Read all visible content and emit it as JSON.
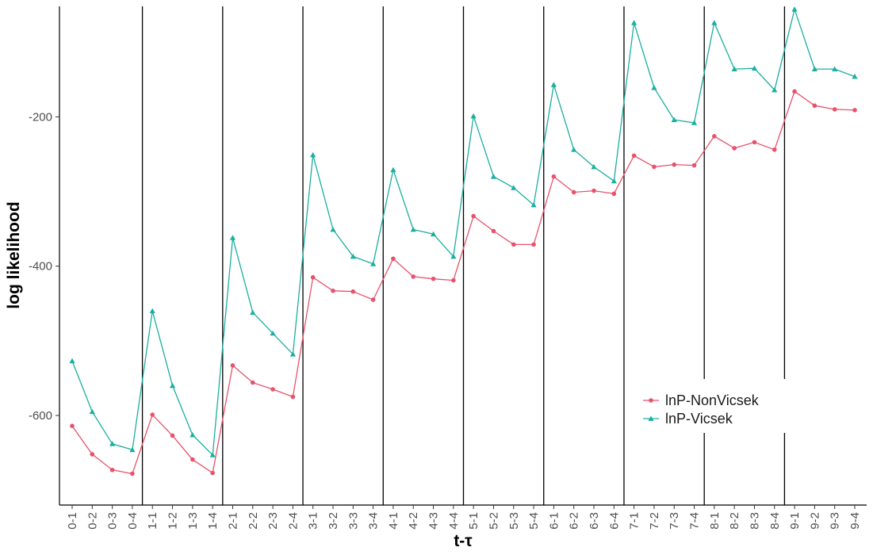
{
  "chart_data": {
    "type": "line",
    "xlabel": "t-τ",
    "ylabel": "log likelihood",
    "categories": [
      "0-1",
      "0-2",
      "0-3",
      "0-4",
      "1-1",
      "1-2",
      "1-3",
      "1-4",
      "2-1",
      "2-2",
      "2-3",
      "2-4",
      "3-1",
      "3-2",
      "3-3",
      "3-4",
      "4-1",
      "4-2",
      "4-3",
      "4-4",
      "5-1",
      "5-2",
      "5-3",
      "5-4",
      "6-1",
      "6-2",
      "6-3",
      "6-4",
      "7-1",
      "7-2",
      "7-3",
      "7-4",
      "8-1",
      "8-2",
      "8-3",
      "8-4",
      "9-1",
      "9-2",
      "9-3",
      "9-4"
    ],
    "ylim": [
      -720,
      -52
    ],
    "yticks": [
      -600,
      -400,
      -200
    ],
    "vlines_at": [
      "0-4",
      "1-4",
      "2-4",
      "3-4",
      "4-4",
      "5-4",
      "6-4",
      "7-4",
      "8-4"
    ],
    "grid": false,
    "legend_position": "bottom-right",
    "series": [
      {
        "name": "lnP-NonVicsek",
        "color": "#e8526b",
        "marker": "circle",
        "values": [
          -614,
          -652,
          -673,
          -678,
          -599,
          -627,
          -659,
          -677,
          -533,
          -556,
          -565,
          -575,
          -415,
          -433,
          -434,
          -445,
          -390,
          -414,
          -417,
          -419,
          -333,
          -353,
          -371,
          -371,
          -280,
          -301,
          -299,
          -303,
          -252,
          -267,
          -264,
          -265,
          -226,
          -242,
          -234,
          -244,
          -166,
          -185,
          -190,
          -191
        ]
      },
      {
        "name": "lnP-Vicsek",
        "color": "#1aafa0",
        "marker": "triangle",
        "values": [
          -527,
          -595,
          -638,
          -646,
          -460,
          -560,
          -626,
          -653,
          -362,
          -462,
          -490,
          -518,
          -251,
          -351,
          -387,
          -397,
          -271,
          -351,
          -357,
          -387,
          -199,
          -280,
          -295,
          -318,
          -157,
          -244,
          -267,
          -286,
          -74,
          -161,
          -204,
          -208,
          -74,
          -136,
          -135,
          -164,
          -56,
          -136,
          -136,
          -146
        ]
      }
    ]
  }
}
